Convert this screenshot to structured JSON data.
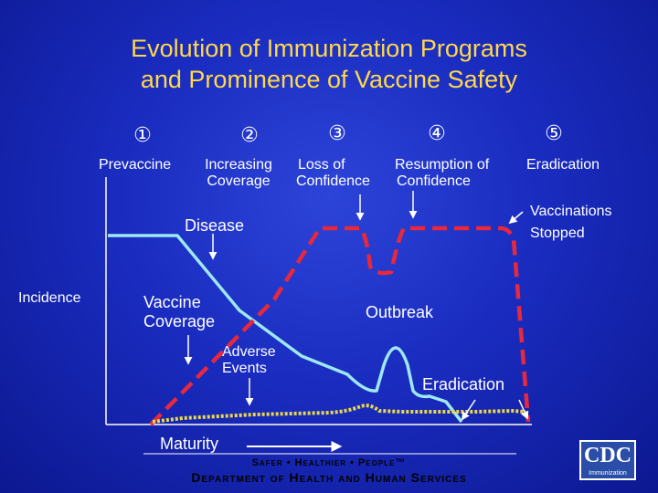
{
  "title": {
    "line1": "Evolution of Immunization Programs",
    "line2": "and Prominence of Vaccine Safety"
  },
  "phases": [
    {
      "number": "①",
      "label_line1": "Prevaccine",
      "label_line2": ""
    },
    {
      "number": "②",
      "label_line1": "Increasing",
      "label_line2": "Coverage"
    },
    {
      "number": "③",
      "label_line1": "Loss of",
      "label_line2": "Confidence"
    },
    {
      "number": "④",
      "label_line1": "Resumption of",
      "label_line2": "Confidence"
    },
    {
      "number": "⑤",
      "label_line1": "Eradication",
      "label_line2": ""
    }
  ],
  "labels": {
    "incidence": "Incidence",
    "disease": "Disease",
    "vaccine_coverage_line1": "Vaccine",
    "vaccine_coverage_line2": "Coverage",
    "adverse_events_line1": "Adverse",
    "adverse_events_line2": "Events",
    "outbreak": "Outbreak",
    "eradication": "Eradication",
    "vaccinations_stopped_line1": "Vaccinations",
    "vaccinations_stopped_line2": "Stopped",
    "maturity": "Maturity"
  },
  "footer": {
    "tagline": "Safer • Healthier • People™",
    "department": "Department of Health and Human Services"
  },
  "logo": {
    "text": "CDC",
    "subtext": "Immunization"
  },
  "colors": {
    "background": "#1a2cc0",
    "title": "#ffd84a",
    "disease_curve": "#9ee8f0",
    "vaccine_coverage_curve": "#e8283c",
    "adverse_events_curve": "#e8d84a",
    "text": "#ffffff"
  }
}
